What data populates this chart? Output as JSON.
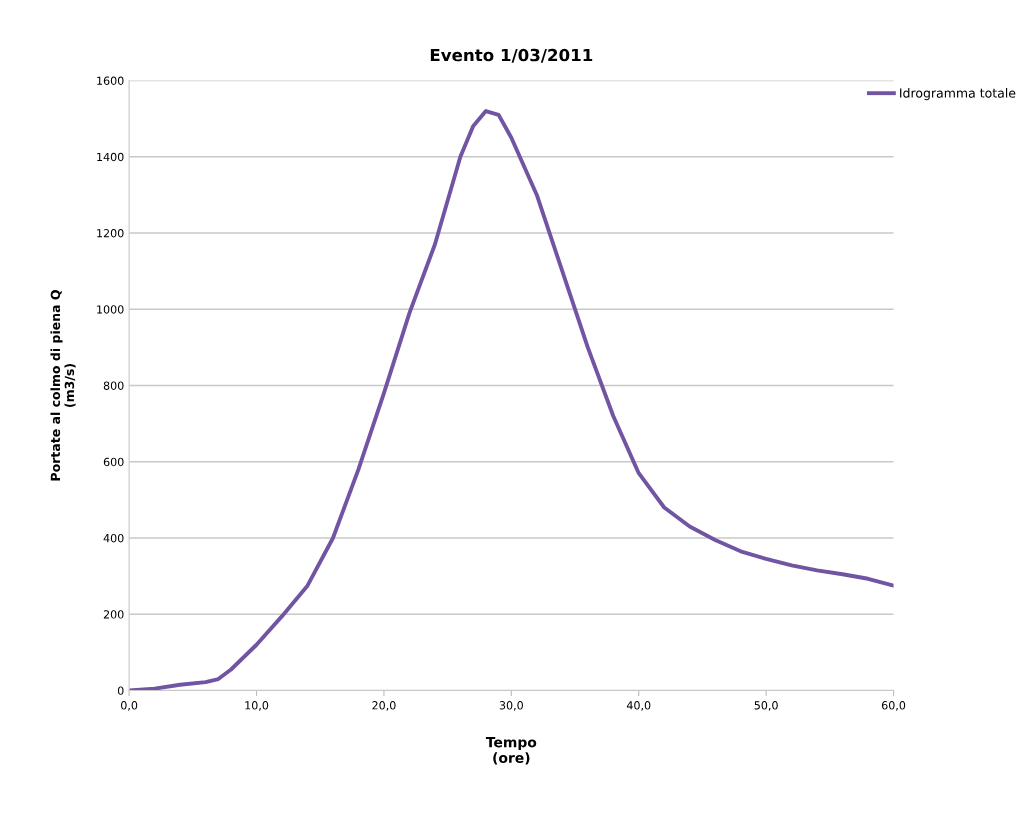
{
  "chart_data": {
    "type": "line",
    "title": "Evento 1/03/2011",
    "xlabel": "Tempo\n(ore)",
    "ylabel": "Portate al colmo di piena Q\n(m3/s)",
    "x": [
      0,
      2,
      4,
      6,
      7,
      8,
      10,
      12,
      14,
      16,
      18,
      20,
      22,
      24,
      26,
      27,
      28,
      29,
      30,
      32,
      34,
      36,
      38,
      40,
      42,
      44,
      46,
      48,
      50,
      52,
      54,
      56,
      58,
      60
    ],
    "series": [
      {
        "name": "Idrogramma totale",
        "color": "#7155a3",
        "values": [
          0,
          5,
          15,
          22,
          30,
          55,
          120,
          195,
          275,
          400,
          580,
          780,
          990,
          1170,
          1400,
          1480,
          1520,
          1510,
          1450,
          1300,
          1100,
          900,
          720,
          570,
          480,
          430,
          395,
          365,
          345,
          328,
          315,
          305,
          293,
          275
        ]
      }
    ],
    "xlim": [
      0,
      60
    ],
    "xticks": [
      {
        "value": 0,
        "label": "0,0"
      },
      {
        "value": 10,
        "label": "10,0"
      },
      {
        "value": 20,
        "label": "20,0"
      },
      {
        "value": 30,
        "label": "30,0"
      },
      {
        "value": 40,
        "label": "40,0"
      },
      {
        "value": 50,
        "label": "50,0"
      },
      {
        "value": 60,
        "label": "60,0"
      }
    ],
    "ylim": [
      0,
      1600
    ],
    "yticks": [
      0,
      200,
      400,
      600,
      800,
      1000,
      1200,
      1400,
      1600
    ],
    "grid": "y",
    "legend": "top right",
    "marker": "none",
    "line_style": "solid"
  }
}
